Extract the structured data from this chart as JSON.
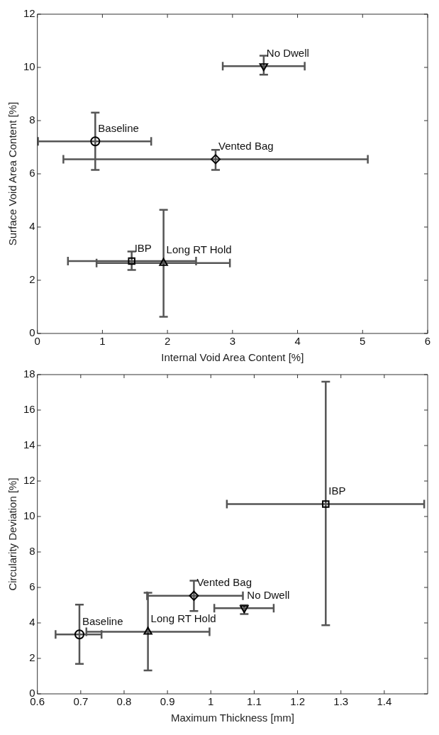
{
  "chart_data": [
    {
      "type": "scatter",
      "xlabel": "Internal Void Area Content [%]",
      "ylabel": "Surface Void Area Content [%]",
      "xlim": [
        0,
        6
      ],
      "xticks": [
        0,
        1,
        2,
        3,
        4,
        5,
        6
      ],
      "ylim": [
        0,
        12
      ],
      "yticks": [
        0,
        2,
        4,
        6,
        8,
        10,
        12
      ],
      "grid": false,
      "legend": false,
      "series": [
        {
          "name": "Baseline",
          "color": "#000000",
          "marker": "circle",
          "x": [
            0.89
          ],
          "values": [
            7.22
          ],
          "xerrors": [
            [
              0.01,
              1.75
            ]
          ],
          "errors": [
            [
              6.15,
              8.3
            ]
          ]
        },
        {
          "name": "Vented Bag",
          "color": "#000000",
          "marker": "diamond",
          "x": [
            2.74
          ],
          "values": [
            6.55
          ],
          "xerrors": [
            [
              0.4,
              5.08
            ]
          ],
          "errors": [
            [
              6.15,
              6.9
            ]
          ]
        },
        {
          "name": "No Dwell",
          "color": "#000000",
          "marker": "triangle_down",
          "x": [
            3.48
          ],
          "values": [
            10.05
          ],
          "xerrors": [
            [
              2.85,
              4.11
            ]
          ],
          "errors": [
            [
              9.73,
              10.44
            ]
          ]
        },
        {
          "name": "IBP",
          "color": "#000000",
          "marker": "square",
          "x": [
            1.45
          ],
          "values": [
            2.72
          ],
          "xerrors": [
            [
              0.47,
              2.44
            ]
          ],
          "errors": [
            [
              2.39,
              3.08
            ]
          ]
        },
        {
          "name": "Long RT Hold",
          "color": "#000000",
          "marker": "triangle",
          "x": [
            1.94
          ],
          "values": [
            2.65
          ],
          "xerrors": [
            [
              0.91,
              2.96
            ]
          ],
          "errors": [
            [
              0.63,
              4.65
            ]
          ]
        }
      ]
    },
    {
      "type": "scatter",
      "xlabel": "Maximum Thickness [mm]",
      "ylabel": "Circularity Deviation [%]",
      "xlim": [
        0.6,
        1.5
      ],
      "xticks": [
        0.6,
        0.7,
        0.8,
        0.9,
        1,
        1.1,
        1.2,
        1.3,
        1.4
      ],
      "ylim": [
        0,
        18
      ],
      "yticks": [
        0,
        2,
        4,
        6,
        8,
        10,
        12,
        14,
        16,
        18
      ],
      "grid": false,
      "legend": false,
      "series": [
        {
          "name": "Baseline",
          "color": "#000000",
          "marker": "circle",
          "x": [
            0.697
          ],
          "values": [
            3.35
          ],
          "xerrors": [
            [
              0.642,
              0.748
            ]
          ],
          "errors": [
            [
              1.69,
              5.03
            ]
          ]
        },
        {
          "name": "Vented Bag",
          "color": "#000000",
          "marker": "diamond",
          "x": [
            0.961
          ],
          "values": [
            5.53
          ],
          "xerrors": [
            [
              0.853,
              1.074
            ]
          ],
          "errors": [
            [
              4.67,
              6.38
            ]
          ]
        },
        {
          "name": "No Dwell",
          "color": "#000000",
          "marker": "triangle_down",
          "x": [
            1.077
          ],
          "values": [
            4.83
          ],
          "xerrors": [
            [
              1.008,
              1.145
            ]
          ],
          "errors": [
            [
              4.5,
              5.0
            ]
          ]
        },
        {
          "name": "IBP",
          "color": "#000000",
          "marker": "square",
          "x": [
            1.265
          ],
          "values": [
            10.7
          ],
          "xerrors": [
            [
              1.037,
              1.492
            ]
          ],
          "errors": [
            [
              3.87,
              17.6
            ]
          ]
        },
        {
          "name": "Long RT Hold",
          "color": "#000000",
          "marker": "triangle",
          "x": [
            0.855
          ],
          "values": [
            3.5
          ],
          "xerrors": [
            [
              0.713,
              0.997
            ]
          ],
          "errors": [
            [
              1.32,
              5.7
            ]
          ]
        }
      ]
    }
  ]
}
